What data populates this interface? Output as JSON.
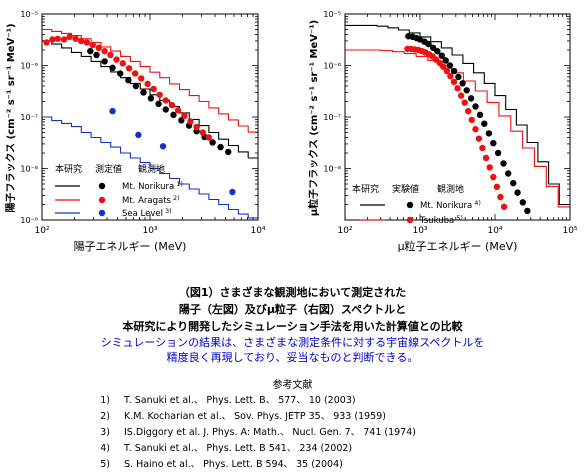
{
  "chart_data": [
    {
      "type": "scatter",
      "xlabel": "陽子エネルギー (MeV)",
      "ylabel": "陽子フラックス (cm⁻² s⁻¹ sr⁻¹ MeV⁻¹)",
      "xscale": "log",
      "yscale": "log",
      "xlim": [
        100,
        10000
      ],
      "ylim": [
        1e-09,
        1e-05
      ],
      "x_ticks": [
        "10²",
        "10³",
        "10⁴"
      ],
      "y_ticks": [
        "10⁻⁹",
        "10⁻⁸",
        "10⁻⁷",
        "10⁻⁶",
        "10⁻⁵"
      ],
      "legend_headers": [
        "本研究",
        "測定値",
        "観測地"
      ],
      "series": [
        {
          "name": "Mt. Norikura",
          "ref": "1)",
          "color": "#000000",
          "points": [
            [
              280,
              1.9e-06
            ],
            [
              320,
              1.6e-06
            ],
            [
              380,
              1.2e-06
            ],
            [
              450,
              9e-07
            ],
            [
              530,
              7e-07
            ],
            [
              630,
              5.2e-07
            ],
            [
              740,
              4e-07
            ],
            [
              870,
              3e-07
            ],
            [
              1020,
              2.3e-07
            ],
            [
              1200,
              1.8e-07
            ],
            [
              1400,
              1.4e-07
            ],
            [
              1650,
              1.1e-07
            ],
            [
              1950,
              8.6e-08
            ],
            [
              2300,
              6.8e-08
            ],
            [
              2700,
              5.3e-08
            ],
            [
              3200,
              4.1e-08
            ],
            [
              3800,
              3.2e-08
            ],
            [
              4500,
              2.6e-08
            ],
            [
              5300,
              2.1e-08
            ]
          ],
          "steps_y": [
            3e-06,
            2.6e-06,
            2.2e-06,
            1.8e-06,
            1.5e-06,
            1.2e-06,
            9.5e-07,
            7.5e-07,
            5.8e-07,
            4.5e-07,
            3.5e-07,
            2.7e-07,
            2.1e-07,
            1.6e-07,
            1.2e-07,
            9e-08,
            6.8e-08,
            5e-08,
            3.7e-08,
            2.8e-08,
            2.1e-08,
            1.6e-08
          ]
        },
        {
          "name": "Mt. Aragats",
          "ref": "2)",
          "color": "#ee1111",
          "points": [
            [
              110,
              2.8e-06
            ],
            [
              125,
              3.2e-06
            ],
            [
              140,
              3.3e-06
            ],
            [
              160,
              3.2e-06
            ],
            [
              180,
              3.6e-06
            ],
            [
              205,
              3.3e-06
            ],
            [
              230,
              3e-06
            ],
            [
              260,
              2.8e-06
            ],
            [
              295,
              2.5e-06
            ],
            [
              335,
              2.2e-06
            ],
            [
              380,
              1.9e-06
            ],
            [
              430,
              1.6e-06
            ],
            [
              490,
              1.3e-06
            ],
            [
              560,
              1.1e-06
            ],
            [
              640,
              8.8e-07
            ],
            [
              730,
              7e-07
            ],
            [
              830,
              5.6e-07
            ],
            [
              950,
              4.4e-07
            ],
            [
              1080,
              3.5e-07
            ],
            [
              1230,
              2.7e-07
            ],
            [
              1400,
              2.1e-07
            ],
            [
              1600,
              1.7e-07
            ],
            [
              1820,
              1.35e-07
            ],
            [
              2080,
              1.05e-07
            ],
            [
              2370,
              8.2e-08
            ],
            [
              2700,
              6.4e-08
            ],
            [
              3080,
              5e-08
            ],
            [
              3500,
              4e-08
            ]
          ],
          "steps_y": [
            5e-06,
            4.6e-06,
            4.2e-06,
            3.8e-06,
            3.3e-06,
            2.8e-06,
            2.3e-06,
            1.9e-06,
            1.5e-06,
            1.2e-06,
            9.5e-07,
            7.4e-07,
            5.8e-07,
            4.4e-07,
            3.4e-07,
            2.6e-07,
            2e-07,
            1.5e-07,
            1.15e-07,
            8.8e-08,
            6.7e-08,
            5.1e-08
          ]
        },
        {
          "name": "Sea Level",
          "ref": "3)",
          "color": "#1133cc",
          "points": [
            [
              450,
              1.3e-07
            ],
            [
              780,
              4.5e-08
            ],
            [
              1320,
              2.7e-08
            ],
            [
              5800,
              3.5e-09
            ]
          ],
          "steps_y": [
            1e-07,
            8.5e-08,
            7.5e-08,
            6.5e-08,
            5e-08,
            4e-08,
            3.2e-08,
            2.6e-08,
            2e-08,
            1.6e-08,
            1.3e-08,
            1e-08,
            8e-09,
            6.4e-09,
            5e-09,
            4e-09,
            3.2e-09,
            2.5e-09,
            2e-09,
            1.6e-09,
            1.3e-09,
            1.1e-09
          ]
        }
      ]
    },
    {
      "type": "scatter",
      "xlabel": "μ粒子エネルギー (MeV)",
      "ylabel": "μ粒子フラックス (cm⁻² s⁻¹ sr⁻¹ MeV⁻¹)",
      "xscale": "log",
      "yscale": "log",
      "xlim": [
        100,
        100000
      ],
      "ylim": [
        1e-09,
        1e-05
      ],
      "x_ticks": [
        "10²",
        "10³",
        "10⁴",
        "10⁵"
      ],
      "y_ticks": [
        "10⁻⁸",
        "10⁻⁷",
        "10⁻⁶",
        "10⁻⁵"
      ],
      "legend_headers": [
        "本研究",
        "実験値",
        "観測地"
      ],
      "series": [
        {
          "name": "Mt. Norikura",
          "ref": "4)",
          "color": "#000000",
          "points": [
            [
              700,
              3.7e-06
            ],
            [
              800,
              3.6e-06
            ],
            [
              900,
              3.4e-06
            ],
            [
              1000,
              3.2e-06
            ],
            [
              1150,
              2.9e-06
            ],
            [
              1300,
              2.6e-06
            ],
            [
              1500,
              2.2e-06
            ],
            [
              1700,
              1.9e-06
            ],
            [
              1950,
              1.55e-06
            ],
            [
              2200,
              1.25e-06
            ],
            [
              2500,
              1e-06
            ],
            [
              2850,
              7.8e-07
            ],
            [
              3250,
              6e-07
            ],
            [
              3700,
              4.5e-07
            ],
            [
              4200,
              3.3e-07
            ],
            [
              4800,
              2.3e-07
            ],
            [
              5500,
              1.6e-07
            ],
            [
              6300,
              1.1e-07
            ],
            [
              7200,
              7.4e-08
            ],
            [
              8300,
              4.8e-08
            ],
            [
              9500,
              3.1e-08
            ],
            [
              11000,
              2e-08
            ],
            [
              13000,
              1.25e-08
            ],
            [
              15000,
              8e-09
            ],
            [
              17500,
              5.2e-09
            ],
            [
              20000,
              3.4e-09
            ],
            [
              23500,
              2.2e-09
            ],
            [
              27000,
              1.5e-09
            ]
          ],
          "steps_y": [
            6e-06,
            6e-06,
            6e-06,
            5.8e-06,
            5.4e-06,
            4.9e-06,
            4.3e-06,
            3.6e-06,
            2.9e-06,
            2.2e-06,
            1.6e-06,
            1.1e-06,
            7.2e-07,
            4.5e-07,
            2.6e-07,
            1.4e-07,
            7e-08,
            3.2e-08,
            1.35e-08,
            5e-09,
            2e-09
          ]
        },
        {
          "name": "Tsukuba",
          "ref": "5)",
          "color": "#ee1111",
          "points": [
            [
              680,
              2.1e-06
            ],
            [
              760,
              2.1e-06
            ],
            [
              850,
              2.05e-06
            ],
            [
              950,
              2e-06
            ],
            [
              1060,
              1.9e-06
            ],
            [
              1180,
              1.8e-06
            ],
            [
              1320,
              1.65e-06
            ],
            [
              1470,
              1.5e-06
            ],
            [
              1640,
              1.3e-06
            ],
            [
              1830,
              1.12e-06
            ],
            [
              2040,
              9.5e-07
            ],
            [
              2280,
              7.8e-07
            ],
            [
              2540,
              6.2e-07
            ],
            [
              2840,
              4.8e-07
            ],
            [
              3170,
              3.6e-07
            ],
            [
              3540,
              2.6e-07
            ],
            [
              3950,
              1.9e-07
            ],
            [
              4400,
              1.3e-07
            ],
            [
              4900,
              8.8e-08
            ],
            [
              5500,
              5.8e-08
            ],
            [
              6100,
              3.8e-08
            ],
            [
              6800,
              2.5e-08
            ],
            [
              7600,
              1.6e-08
            ],
            [
              8500,
              1.05e-08
            ],
            [
              9500,
              6.8e-09
            ],
            [
              10600,
              4.4e-09
            ],
            [
              11800,
              2.8e-09
            ],
            [
              13200,
              1.8e-09
            ]
          ],
          "steps_y": [
            2e-06,
            2e-06,
            2e-06,
            1.95e-06,
            1.85e-06,
            1.7e-06,
            1.5e-06,
            1.25e-06,
            9.8e-07,
            7.2e-07,
            5e-07,
            3.2e-07,
            1.9e-07,
            1.05e-07,
            5.3e-08,
            2.5e-08,
            1.1e-08,
            4.5e-09,
            1.8e-09
          ]
        }
      ]
    }
  ],
  "caption": {
    "line1": "（図1）さまざまな観測地において測定された",
    "line2": "陽子（左図）及びμ粒子（右図）スペクトルと",
    "line3": "本研究により開発したシミュレーション手法を用いた計算値との比較"
  },
  "description": {
    "line1": "シミュレーションの結果は、さまざまな測定条件に対する宇宙線スペクトルを",
    "line2": "精度良く再現しており、妥当なものと判断できる。"
  },
  "references": {
    "title": "参考文献",
    "items": [
      {
        "num": "1)",
        "text": "T. Sanuki et al.、 Phys. Lett. B、 577、 10 (2003)"
      },
      {
        "num": "2)",
        "text": "K.M. Kocharian et al.、 Sov. Phys. JETP 35、 933 (1959)"
      },
      {
        "num": "3)",
        "text": "IS.Diggory et al. J. Phys. A: Math.、 Nucl. Gen. 7、 741 (1974)"
      },
      {
        "num": "4)",
        "text": "T. Sanuki et al.、 Phys. Lett. B 541、 234 (2002)"
      },
      {
        "num": "5)",
        "text": "S. Haino et al.、 Phys. Lett. B 594、 35 (2004)"
      }
    ]
  }
}
